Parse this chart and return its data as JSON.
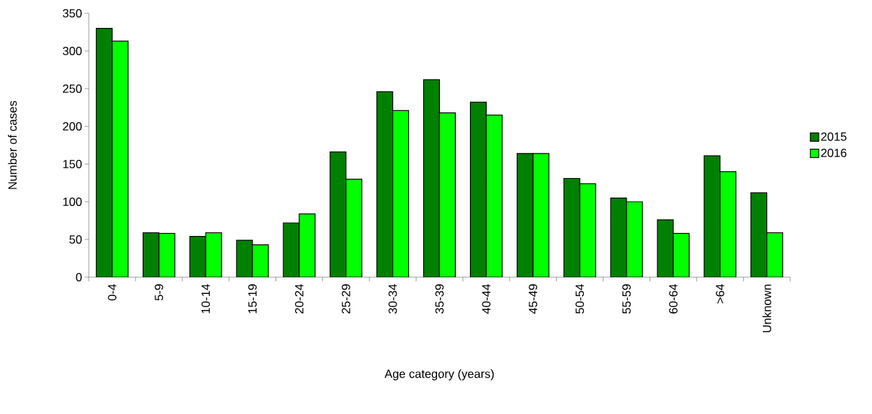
{
  "chart_data": {
    "type": "bar",
    "xlabel": "Age category (years)",
    "ylabel": "Number of cases",
    "categories": [
      "0-4",
      "5-9",
      "10-14",
      "15-19",
      "20-24",
      "25-29",
      "30-34",
      "35-39",
      "40-44",
      "45-49",
      "50-54",
      "55-59",
      "60-64",
      ">64",
      "Unknown"
    ],
    "series": [
      {
        "name": "2015",
        "color": "#008000",
        "values": [
          330,
          59,
          54,
          49,
          72,
          166,
          246,
          262,
          232,
          164,
          131,
          105,
          76,
          161,
          112
        ]
      },
      {
        "name": "2016",
        "color": "#00ff00",
        "values": [
          313,
          58,
          59,
          43,
          84,
          130,
          221,
          218,
          215,
          164,
          124,
          100,
          58,
          140,
          59
        ]
      }
    ],
    "ylim": [
      0,
      350
    ],
    "yticks": [
      0,
      50,
      100,
      150,
      200,
      250,
      300,
      350
    ],
    "grid": false,
    "legend": "right"
  }
}
